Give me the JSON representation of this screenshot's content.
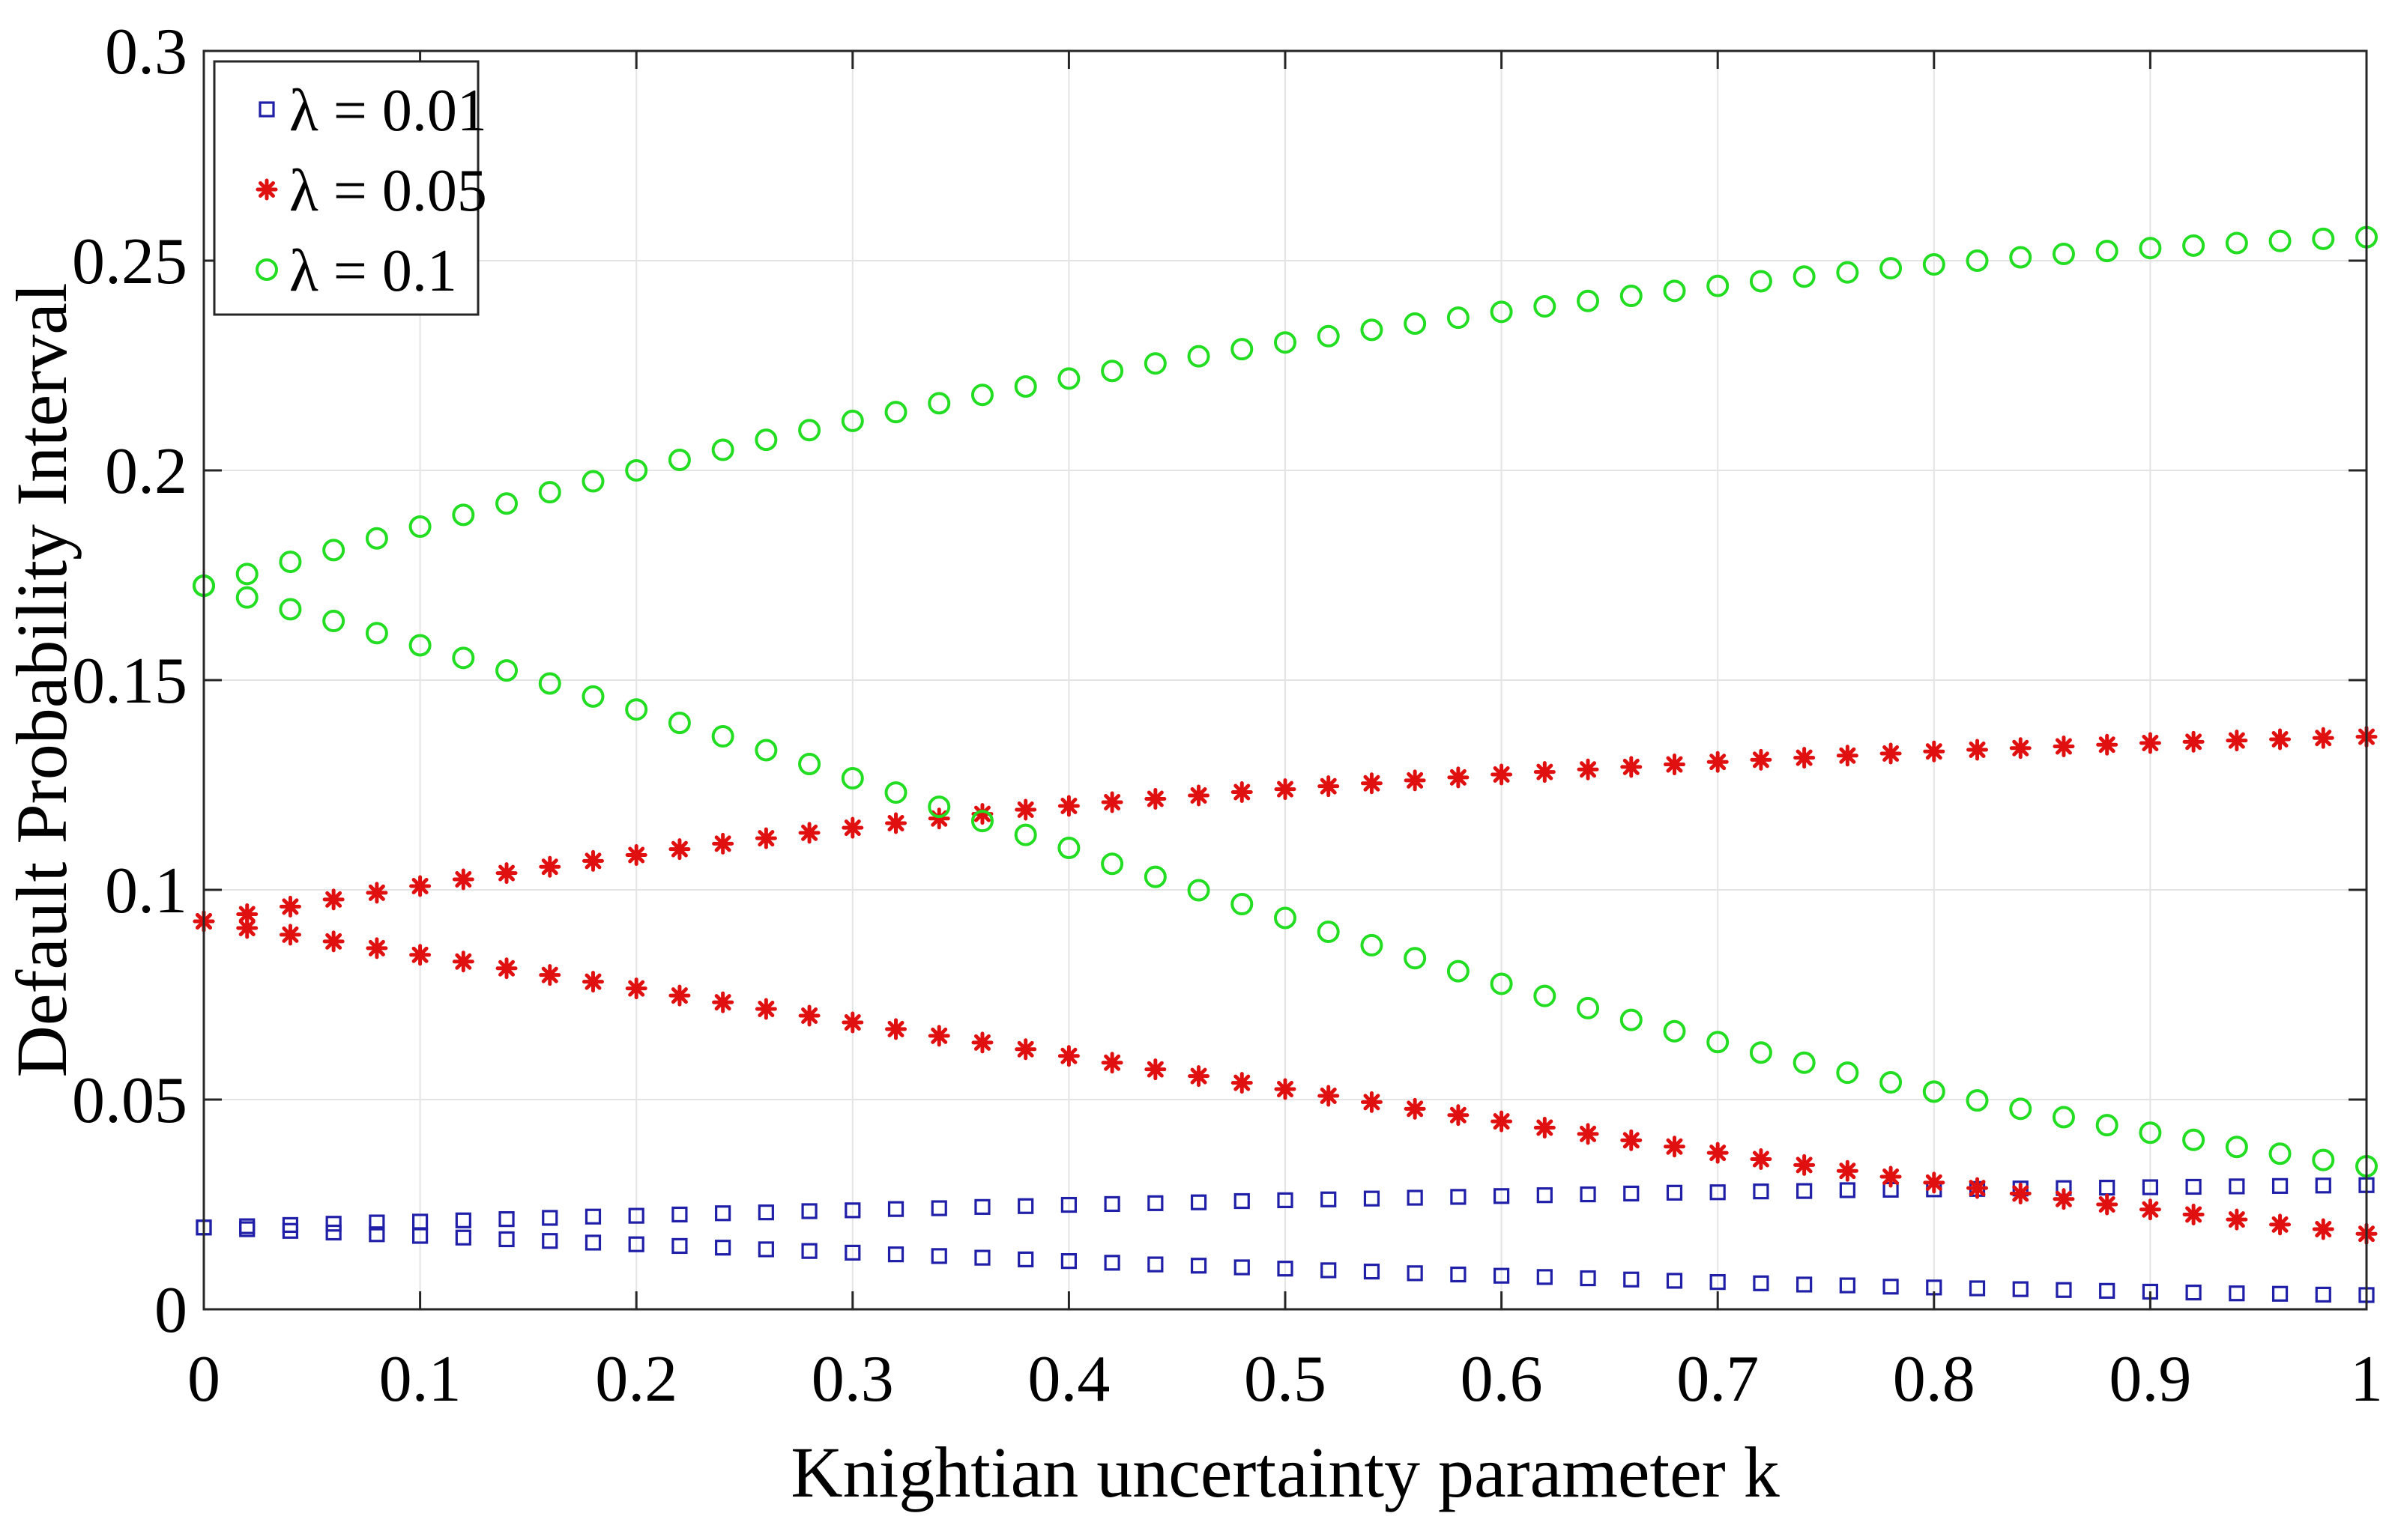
{
  "chart_data": {
    "type": "scatter",
    "title": "",
    "xlabel": "Knightian uncertainty parameter k",
    "ylabel": "Default Probability Interval",
    "xlim": [
      0,
      1
    ],
    "ylim": [
      0,
      0.3
    ],
    "xticks": [
      "0",
      "0.1",
      "0.2",
      "0.3",
      "0.4",
      "0.5",
      "0.6",
      "0.7",
      "0.8",
      "0.9",
      "1"
    ],
    "yticks": [
      "0",
      "0.05",
      "0.1",
      "0.15",
      "0.2",
      "0.25",
      "0.3"
    ],
    "grid": true,
    "legend_location": "top-left",
    "x": [
      0,
      0.02,
      0.04,
      0.06,
      0.08,
      0.1,
      0.12,
      0.14,
      0.16,
      0.18,
      0.2,
      0.22,
      0.24,
      0.26,
      0.28,
      0.3,
      0.32,
      0.34,
      0.36,
      0.38,
      0.4,
      0.42,
      0.44,
      0.46,
      0.48,
      0.5,
      0.52,
      0.54,
      0.56,
      0.58,
      0.6,
      0.62,
      0.64,
      0.66,
      0.68,
      0.7,
      0.72,
      0.74,
      0.76,
      0.78,
      0.8,
      0.82,
      0.84,
      0.86,
      0.88,
      0.9,
      0.92,
      0.94,
      0.96,
      0.98,
      1
    ],
    "series": [
      {
        "name": "λ = 0.01",
        "marker": "square",
        "color": "#1f1fa8",
        "upper": [
          0.0195,
          0.0198,
          0.0201,
          0.0204,
          0.0207,
          0.0209,
          0.0212,
          0.0215,
          0.0218,
          0.0221,
          0.0223,
          0.0226,
          0.0229,
          0.0231,
          0.0234,
          0.0236,
          0.0239,
          0.0241,
          0.0244,
          0.0246,
          0.0249,
          0.0251,
          0.0253,
          0.0255,
          0.0258,
          0.026,
          0.0262,
          0.0264,
          0.0266,
          0.0268,
          0.027,
          0.0272,
          0.0274,
          0.0276,
          0.0278,
          0.0279,
          0.0281,
          0.0282,
          0.0284,
          0.0285,
          0.0286,
          0.0287,
          0.0288,
          0.0289,
          0.029,
          0.0291,
          0.0292,
          0.0293,
          0.0294,
          0.0295,
          0.0296
        ],
        "lower": [
          0.0195,
          0.0191,
          0.0187,
          0.0183,
          0.0179,
          0.0175,
          0.0171,
          0.0167,
          0.0163,
          0.0159,
          0.0155,
          0.0151,
          0.0147,
          0.0143,
          0.0139,
          0.0135,
          0.0131,
          0.0127,
          0.0123,
          0.0119,
          0.0115,
          0.0111,
          0.0107,
          0.0104,
          0.01,
          0.0097,
          0.0093,
          0.009,
          0.0086,
          0.0083,
          0.008,
          0.0077,
          0.0074,
          0.0071,
          0.0068,
          0.0065,
          0.0062,
          0.0059,
          0.0057,
          0.0054,
          0.0052,
          0.005,
          0.0048,
          0.0046,
          0.0044,
          0.0042,
          0.004,
          0.0038,
          0.0037,
          0.0035,
          0.0034
        ]
      },
      {
        "name": "λ = 0.05",
        "marker": "asterisk",
        "color": "#e01010",
        "upper": [
          0.0925,
          0.0942,
          0.096,
          0.0977,
          0.0993,
          0.1009,
          0.1025,
          0.104,
          0.1055,
          0.1069,
          0.1083,
          0.1097,
          0.111,
          0.1123,
          0.1136,
          0.1148,
          0.1159,
          0.117,
          0.1181,
          0.1191,
          0.12,
          0.1209,
          0.1217,
          0.1225,
          0.1233,
          0.124,
          0.1247,
          0.1254,
          0.1261,
          0.1268,
          0.1275,
          0.1281,
          0.1287,
          0.1293,
          0.1299,
          0.1305,
          0.131,
          0.1315,
          0.132,
          0.1325,
          0.133,
          0.1334,
          0.1338,
          0.1342,
          0.1346,
          0.135,
          0.1353,
          0.1356,
          0.1359,
          0.1362,
          0.1365
        ],
        "lower": [
          0.0925,
          0.0909,
          0.0893,
          0.0877,
          0.0861,
          0.0845,
          0.0829,
          0.0813,
          0.0797,
          0.0781,
          0.0765,
          0.0748,
          0.0732,
          0.0716,
          0.07,
          0.0684,
          0.0668,
          0.0652,
          0.0636,
          0.062,
          0.0604,
          0.0588,
          0.0572,
          0.0556,
          0.054,
          0.0525,
          0.0509,
          0.0494,
          0.0478,
          0.0463,
          0.0448,
          0.0433,
          0.0418,
          0.0403,
          0.0388,
          0.0373,
          0.0358,
          0.0344,
          0.033,
          0.0316,
          0.0302,
          0.0289,
          0.0276,
          0.0263,
          0.025,
          0.0238,
          0.0226,
          0.0214,
          0.0202,
          0.0191,
          0.018
        ]
      },
      {
        "name": "λ = 0.1",
        "marker": "circle",
        "color": "#22dd22",
        "upper": [
          0.1725,
          0.1753,
          0.1782,
          0.181,
          0.1838,
          0.1866,
          0.1894,
          0.1921,
          0.1948,
          0.1974,
          0.2,
          0.2025,
          0.2049,
          0.2073,
          0.2096,
          0.2118,
          0.2139,
          0.216,
          0.218,
          0.22,
          0.2219,
          0.2237,
          0.2255,
          0.2272,
          0.2289,
          0.2305,
          0.232,
          0.2335,
          0.235,
          0.2364,
          0.2378,
          0.2391,
          0.2404,
          0.2416,
          0.2428,
          0.244,
          0.2451,
          0.2462,
          0.2472,
          0.2482,
          0.2491,
          0.25,
          0.2508,
          0.2516,
          0.2523,
          0.253,
          0.2536,
          0.2542,
          0.2547,
          0.2552,
          0.2556
        ],
        "lower": [
          0.1725,
          0.1697,
          0.1669,
          0.1641,
          0.1612,
          0.1583,
          0.1553,
          0.1523,
          0.1492,
          0.1461,
          0.143,
          0.1398,
          0.1366,
          0.1333,
          0.13,
          0.1266,
          0.1232,
          0.1198,
          0.1164,
          0.1131,
          0.11,
          0.1062,
          0.1031,
          0.0999,
          0.0966,
          0.0933,
          0.09,
          0.0868,
          0.0837,
          0.0806,
          0.0776,
          0.0747,
          0.0718,
          0.069,
          0.0663,
          0.0637,
          0.0612,
          0.0588,
          0.0564,
          0.0541,
          0.0519,
          0.0498,
          0.0478,
          0.0458,
          0.0439,
          0.0421,
          0.0404,
          0.0387,
          0.0371,
          0.0356,
          0.0341
        ]
      }
    ]
  }
}
